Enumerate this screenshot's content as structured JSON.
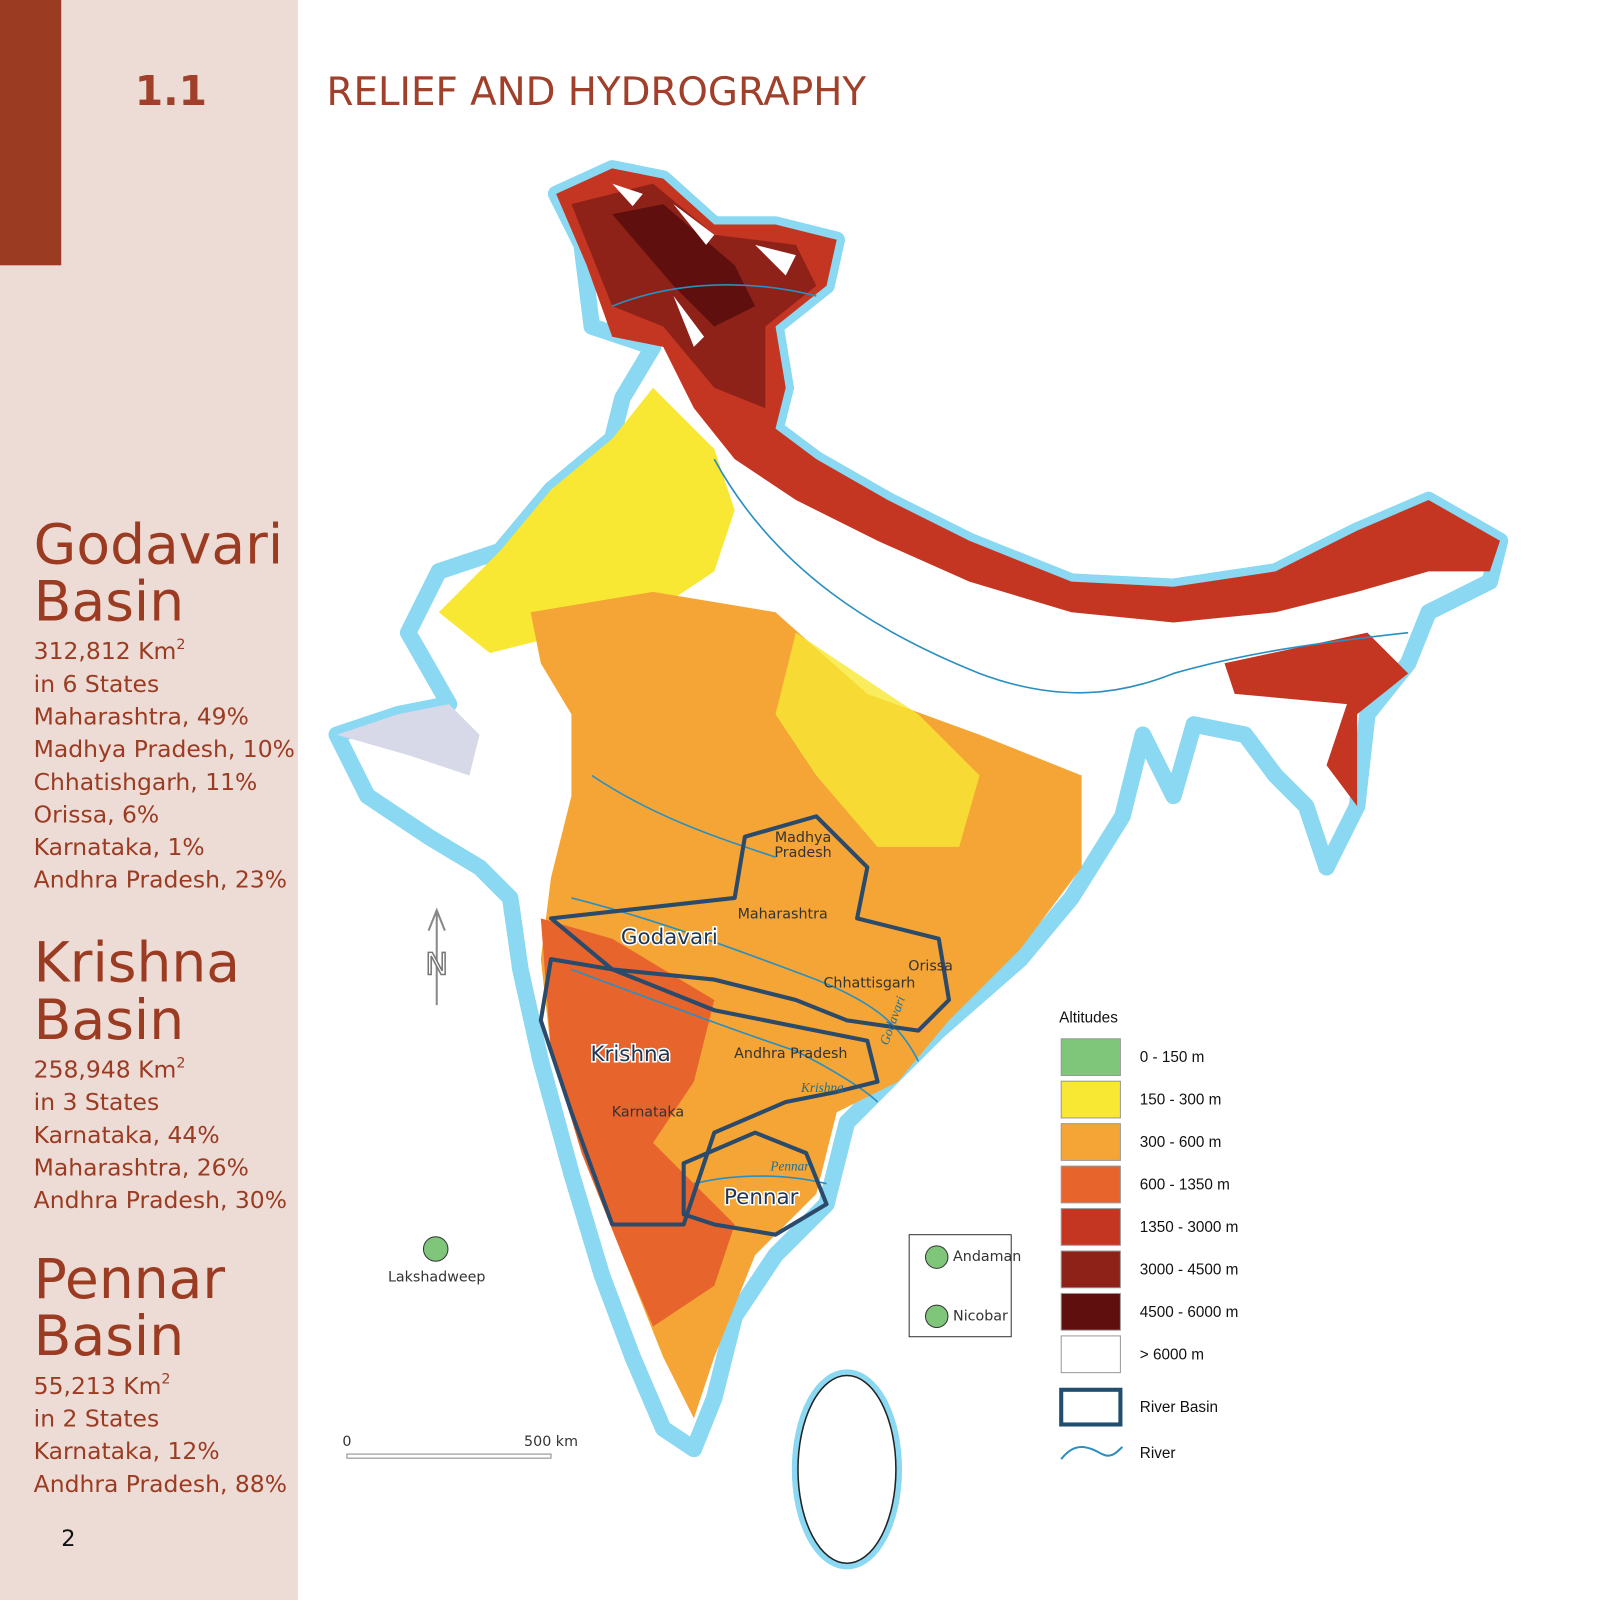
{
  "section": {
    "number": "1.1",
    "title": "RELIEF AND HYDROGRAPHY"
  },
  "basins": [
    {
      "name_lines": [
        "Godavari",
        "Basin"
      ],
      "area": "312,812 Km",
      "area_sup": "2",
      "states_count": "in 6 States",
      "shares": [
        "Maharashtra, 49%",
        "Madhya Pradesh, 10%",
        "Chhatishgarh, 11%",
        "Orissa, 6%",
        "Karnataka, 1%",
        "Andhra Pradesh, 23%"
      ]
    },
    {
      "name_lines": [
        "Krishna",
        "Basin"
      ],
      "area": "258,948 Km",
      "area_sup": "2",
      "states_count": "in 3 States",
      "shares": [
        "Karnataka,  44%",
        "Maharashtra, 26%",
        "Andhra Pradesh, 30%"
      ]
    },
    {
      "name_lines": [
        "Pennar",
        "Basin"
      ],
      "area": "55,213 Km",
      "area_sup": "2",
      "states_count": "in 2 States",
      "shares": [
        "Karnataka, 12%",
        "Andhra Pradesh, 88%"
      ]
    }
  ],
  "page_number": "2",
  "map": {
    "state_labels": [
      "Madhya",
      "Pradesh",
      "Maharashtra",
      "Orissa",
      "Chhattisgarh",
      "Andhra Pradesh",
      "Karnataka"
    ],
    "basin_labels": [
      "Godavari",
      "Krishna",
      "Pennar"
    ],
    "river_labels": [
      "Godavari",
      "Krishna",
      "Pennar"
    ],
    "islands": [
      "Lakshadweep",
      "Andaman",
      "Nicobar"
    ],
    "north": "N",
    "scale": [
      "0",
      "500 km"
    ]
  },
  "legend": {
    "title": "Altitudes",
    "items": [
      {
        "label": "0 - 150 m",
        "color": "#7fc67b"
      },
      {
        "label": "150 - 300 m",
        "color": "#f8e834"
      },
      {
        "label": "300 - 600 m",
        "color": "#f5a535"
      },
      {
        "label": "600 - 1350 m",
        "color": "#e8642d"
      },
      {
        "label": "1350 - 3000 m",
        "color": "#c43522"
      },
      {
        "label": "3000 - 4500 m",
        "color": "#8e2218"
      },
      {
        "label": "4500 - 6000 m",
        "color": "#5f0f0d"
      },
      {
        "label": "> 6000 m",
        "color": "#ffffff"
      }
    ],
    "river_basin": "River Basin",
    "river": "River"
  }
}
